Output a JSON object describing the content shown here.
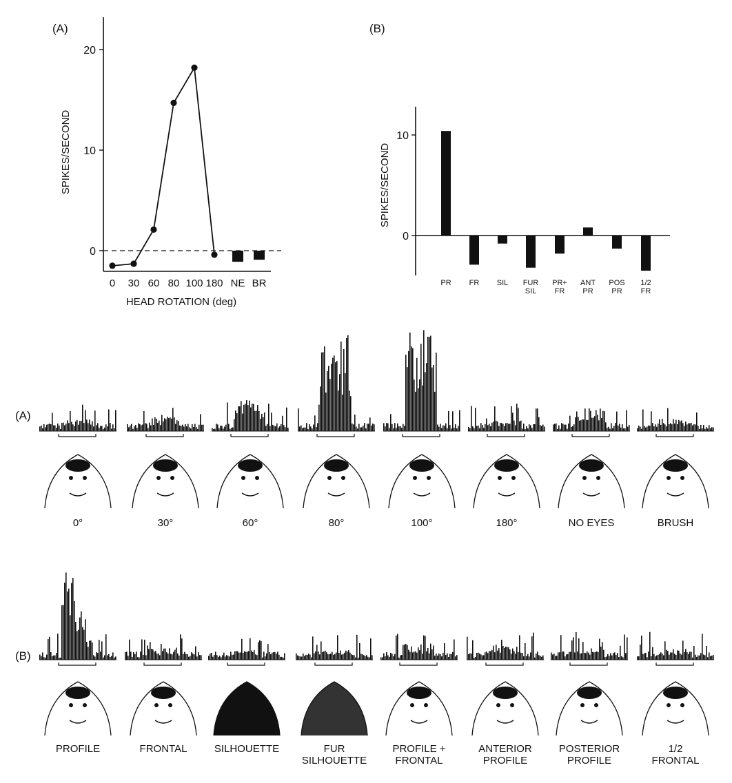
{
  "chart_data": [
    {
      "panel_label": "(A)",
      "type": "line",
      "xlabel": "HEAD ROTATION (deg)",
      "ylabel": "SPIKES/SECOND",
      "ylim": [
        -2,
        23
      ],
      "yticks": [
        "0",
        "10",
        "20"
      ],
      "baseline": 0,
      "baseline_style": "dashed",
      "categories": [
        "0",
        "30",
        "60",
        "80",
        "100",
        "180",
        "NE",
        "BR"
      ],
      "series": [
        {
          "style": "line-with-points",
          "x": [
            "0",
            "30",
            "60",
            "80",
            "100",
            "180"
          ],
          "values": [
            -1.5,
            -1.3,
            2.1,
            14.7,
            18.2,
            -0.4
          ]
        },
        {
          "style": "bar",
          "x": [
            "NE",
            "BR"
          ],
          "values": [
            -1.1,
            -0.9
          ]
        }
      ]
    },
    {
      "panel_label": "(B)",
      "type": "bar",
      "ylabel": "SPIKES/SECOND",
      "ylim": [
        -4,
        12.5
      ],
      "yticks": [
        "0",
        "10"
      ],
      "categories": [
        [
          "PR"
        ],
        [
          "FR"
        ],
        [
          "SIL"
        ],
        [
          "FUR",
          "SIL"
        ],
        [
          "PR+",
          "FR"
        ],
        [
          "ANT",
          "PR"
        ],
        [
          "POS",
          "PR"
        ],
        [
          "1/2",
          "FR"
        ]
      ],
      "values": [
        10.4,
        -2.9,
        -0.8,
        -3.2,
        -1.8,
        0.8,
        -1.3,
        -3.5
      ]
    },
    {
      "panel_label": "(A)",
      "type": "bar",
      "subtype": "peristimulus-histograms",
      "conditions": [
        "0°",
        "30°",
        "60°",
        "80°",
        "100°",
        "180°",
        "NO EYES",
        "BRUSH"
      ],
      "relative_response": [
        0.12,
        0.16,
        0.32,
        0.92,
        1.0,
        0.11,
        0.25,
        0.13
      ]
    },
    {
      "panel_label": "(B)",
      "type": "bar",
      "subtype": "peristimulus-histograms",
      "conditions": [
        [
          "PROFILE"
        ],
        [
          "FRONTAL"
        ],
        [
          "SILHOUETTE"
        ],
        [
          "FUR",
          "SILHOUETTE"
        ],
        [
          "PROFILE +",
          "FRONTAL"
        ],
        [
          "ANTERIOR",
          "PROFILE"
        ],
        [
          "POSTERIOR",
          "PROFILE"
        ],
        [
          "1/2",
          "FRONTAL"
        ]
      ],
      "relative_response": [
        1.0,
        0.12,
        0.1,
        0.09,
        0.16,
        0.14,
        0.13,
        0.1
      ]
    }
  ]
}
